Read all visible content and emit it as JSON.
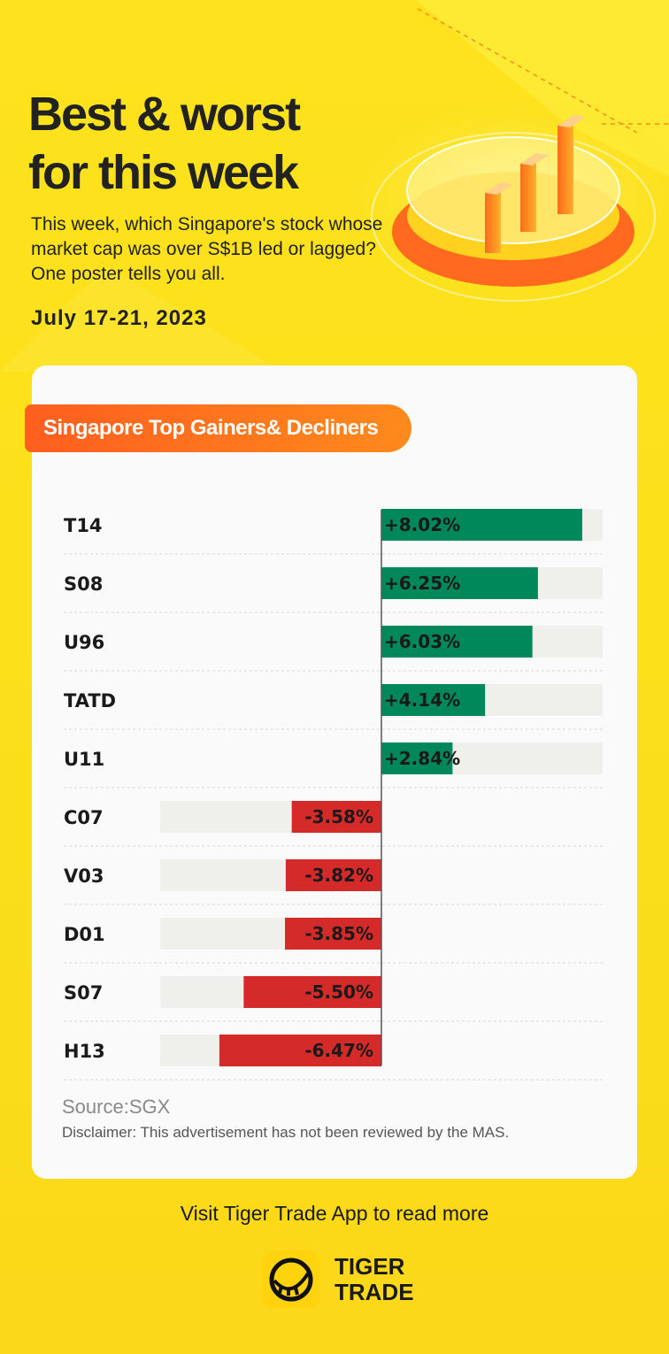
{
  "header": {
    "title_line1": "Best & worst",
    "title_line2": "for this week",
    "intro": "This week, which Singapore's stock whose market cap was over S$1B led or lagged? One poster tells you all.",
    "date": "July 17-21, 2023"
  },
  "card": {
    "tag": "Singapore Top Gainers& Decliners",
    "source": "Source:SGX",
    "disclaimer": "Disclaimer: This advertisement has not been reviewed by the MAS."
  },
  "footer": {
    "cta": "Visit Tiger Trade App to read more",
    "brand_line1": "TIGER",
    "brand_line2": "TRADE"
  },
  "colors": {
    "gain": "#00875a",
    "decline": "#d42a2a",
    "track": "#efefec",
    "accent": "#ff6a1f",
    "background": "#fde21d"
  },
  "icons": {
    "hero": "bar-chart-icon",
    "logo": "tiger-logo-icon"
  },
  "chart_data": {
    "type": "bar",
    "orientation": "horizontal",
    "title": "Singapore Top Gainers& Decliners",
    "categories": [
      "T14",
      "S08",
      "U96",
      "TATD",
      "U11",
      "C07",
      "V03",
      "D01",
      "S07",
      "H13"
    ],
    "values": [
      8.02,
      6.25,
      6.03,
      4.14,
      2.84,
      -3.58,
      -3.82,
      -3.85,
      -5.5,
      -6.47
    ],
    "labels": [
      "+8.02%",
      "+6.25%",
      "+6.03%",
      "+4.14%",
      "+2.84%",
      "-3.58%",
      "-3.82%",
      "-3.85%",
      "-5.50%",
      "-6.47%"
    ],
    "unit": "%",
    "xlim": [
      -10,
      10
    ],
    "grid": false,
    "legend": "none"
  }
}
